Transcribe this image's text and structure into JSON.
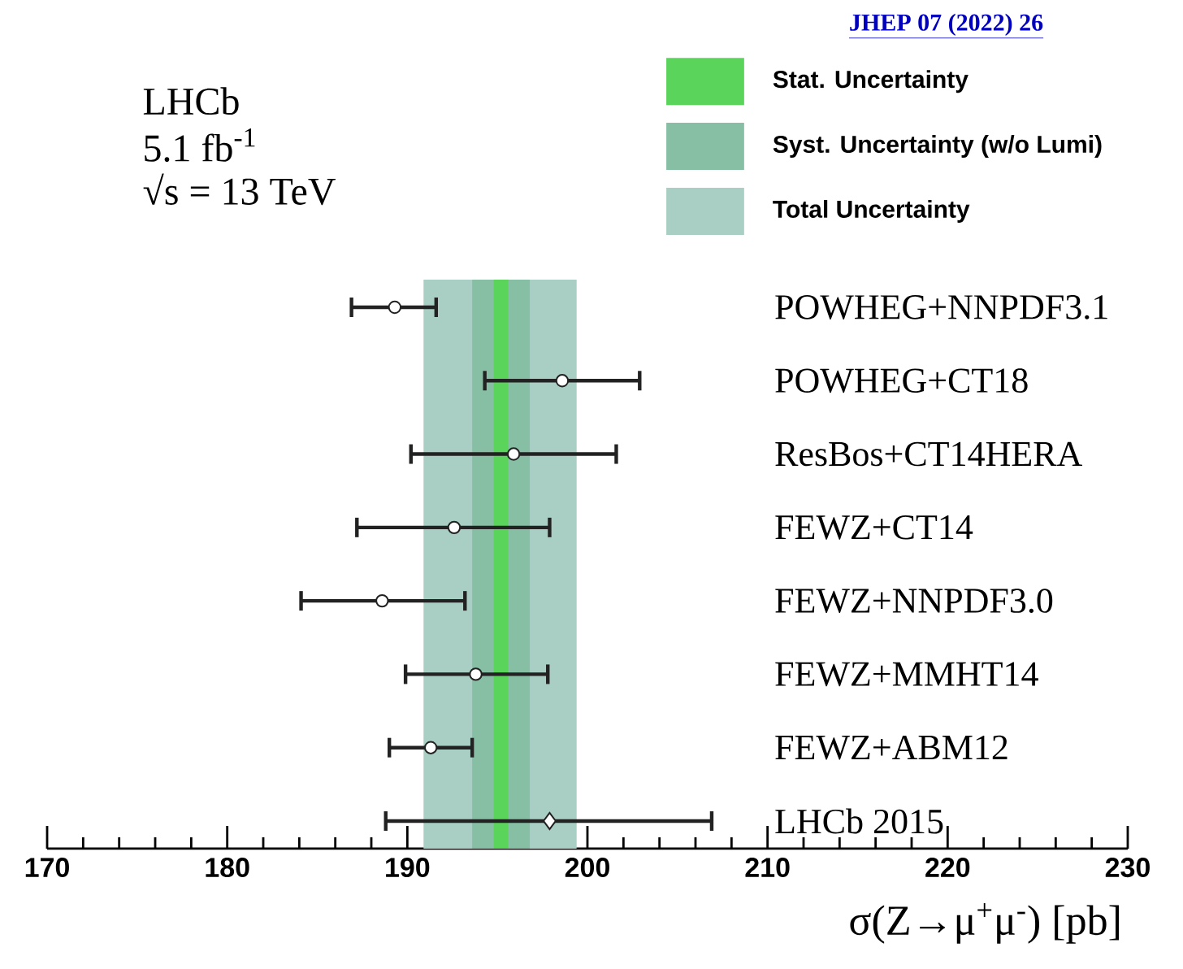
{
  "chart_data": {
    "type": "scatter",
    "orientation": "horizontal",
    "xlabel": "σ(Z→μ$^{+}$μ$^{-}$) [pb]",
    "categories": [
      "POWHEG+NNPDF3.1",
      "POWHEG+CT18",
      "ResBos+CT14HERA",
      "FEWZ+CT14",
      "FEWZ+NNPDF3.0",
      "FEWZ+MMHT14",
      "FEWZ+ABM12",
      "LHCb 2015"
    ],
    "series": [
      {
        "color": "#222222",
        "marker": "circle",
        "values": [
          189.3,
          198.6,
          195.9,
          192.6,
          188.6,
          193.8,
          191.3,
          null
        ],
        "errors": [
          [
            186.9,
            191.6
          ],
          [
            194.3,
            202.9
          ],
          [
            190.2,
            201.6
          ],
          [
            187.2,
            197.9
          ],
          [
            184.1,
            193.2
          ],
          [
            189.9,
            197.8
          ],
          [
            189.0,
            193.6
          ],
          null
        ]
      },
      {
        "color": "#222222",
        "marker": "diamond",
        "values": [
          null,
          null,
          null,
          null,
          null,
          null,
          null,
          197.9
        ],
        "errors": [
          null,
          null,
          null,
          null,
          null,
          null,
          null,
          [
            188.8,
            206.9
          ]
        ]
      }
    ],
    "bands": [
      {
        "axis": "x",
        "from": 194.8,
        "to": 195.6,
        "label": "Stat. Uncertainty",
        "color": "#5ad45a"
      },
      {
        "axis": "x",
        "from": 193.6,
        "to": 196.8,
        "label": "Syst. Uncertainty (w/o Lumi)",
        "color": "#86bfa4"
      },
      {
        "axis": "x",
        "from": 190.9,
        "to": 199.4,
        "label": "Total Uncertainty",
        "color": "#a9cfc4"
      }
    ],
    "xlim": [
      170,
      230
    ],
    "xticks": [
      170,
      180,
      190,
      200,
      210,
      220,
      230
    ],
    "legend": "top right",
    "grid": false,
    "annotations": [
      "LHCb",
      "5.1 fb$^{-1}$",
      "√s = 13 TeV",
      "JHEP 07 (2022) 26"
    ]
  }
}
